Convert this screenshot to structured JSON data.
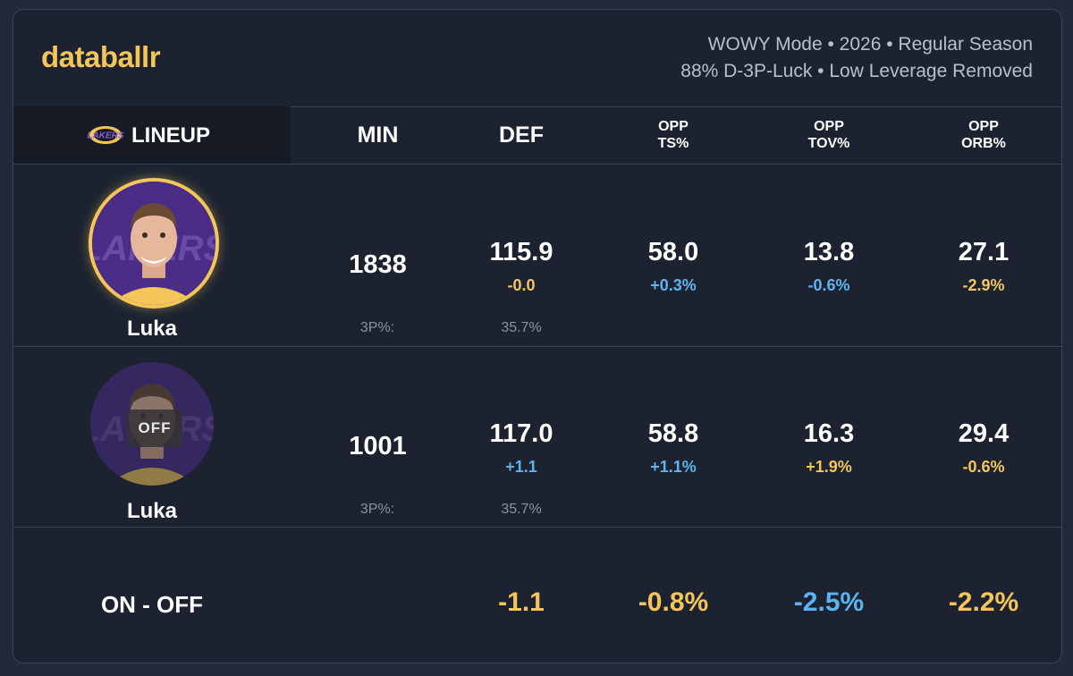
{
  "brand": "databallr",
  "meta": {
    "line1": "WOWY Mode • 2026 • Regular Season",
    "line2": "88% D-3P-Luck • Low Leverage Removed"
  },
  "header": {
    "lineup": "LINEUP",
    "min": "MIN",
    "def": "DEF",
    "opp_ts": [
      "OPP",
      "TS%"
    ],
    "opp_tov": [
      "OPP",
      "TOV%"
    ],
    "opp_orb": [
      "OPP",
      "ORB%"
    ]
  },
  "rows": [
    {
      "player": "Luka",
      "state": "on",
      "min": "1838",
      "def": "115.9",
      "def_delta": "-0.0",
      "opp_ts": "58.0",
      "opp_ts_delta": "+0.3%",
      "opp_tov": "13.8",
      "opp_tov_delta": "-0.6%",
      "opp_orb": "27.1",
      "opp_orb_delta": "-2.9%",
      "three_pt_label": "3P%:",
      "three_pt_value": "35.7%"
    },
    {
      "player": "Luka",
      "state": "off",
      "off_badge": "OFF",
      "min": "1001",
      "def": "117.0",
      "def_delta": "+1.1",
      "opp_ts": "58.8",
      "opp_ts_delta": "+1.1%",
      "opp_tov": "16.3",
      "opp_tov_delta": "+1.9%",
      "opp_orb": "29.4",
      "opp_orb_delta": "-0.6%",
      "three_pt_label": "3P%:",
      "three_pt_value": "35.7%"
    }
  ],
  "on_off": {
    "label": "ON - OFF",
    "def": "-1.1",
    "opp_ts": "-0.8%",
    "opp_tov": "-2.5%",
    "opp_orb": "-2.2%"
  },
  "colors": {
    "gold": "#f4c659",
    "blue": "#5db4f2",
    "background": "#1c2230",
    "lakers_purple": "#4b2c86"
  },
  "icons": {
    "team_logo": "lakers-logo-icon",
    "player_photo": "player-avatar"
  }
}
